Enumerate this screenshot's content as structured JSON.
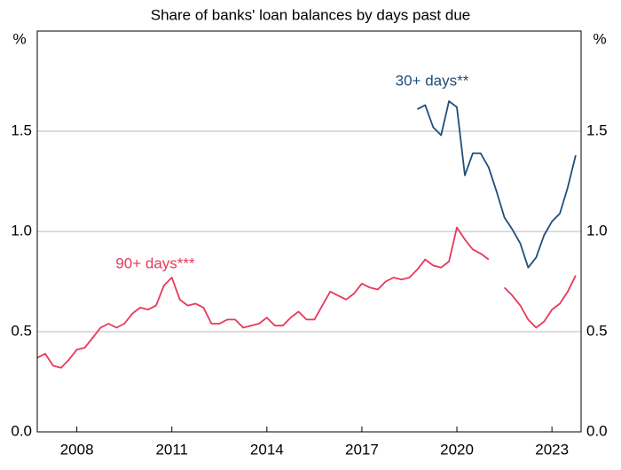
{
  "chart_data": {
    "type": "line",
    "title": "Share of banks' loan balances by days past due",
    "y_unit": "%",
    "x": [
      2006.75,
      2007,
      2007.25,
      2007.5,
      2007.75,
      2008,
      2008.25,
      2008.5,
      2008.75,
      2009,
      2009.25,
      2009.5,
      2009.75,
      2010,
      2010.25,
      2010.5,
      2010.75,
      2011,
      2011.25,
      2011.5,
      2011.75,
      2012,
      2012.25,
      2012.5,
      2012.75,
      2013,
      2013.25,
      2013.5,
      2013.75,
      2014,
      2014.25,
      2014.5,
      2014.75,
      2015,
      2015.25,
      2015.5,
      2015.75,
      2016,
      2016.25,
      2016.5,
      2016.75,
      2017,
      2017.25,
      2017.5,
      2017.75,
      2018,
      2018.25,
      2018.5,
      2018.75,
      2019,
      2019.25,
      2019.5,
      2019.75,
      2020,
      2020.25,
      2020.5,
      2020.75,
      2021,
      2021.25,
      2021.5,
      2021.75,
      2022,
      2022.25,
      2022.5,
      2022.75,
      2023,
      2023.25,
      2023.5,
      2023.75
    ],
    "series": [
      {
        "name": "90+ days***",
        "color": "#e8375a",
        "values": [
          0.37,
          0.39,
          0.33,
          0.32,
          0.36,
          0.41,
          0.42,
          0.47,
          0.52,
          0.54,
          0.52,
          0.54,
          0.59,
          0.62,
          0.61,
          0.63,
          0.73,
          0.77,
          0.66,
          0.63,
          0.64,
          0.62,
          0.54,
          0.54,
          0.56,
          0.56,
          0.52,
          0.53,
          0.54,
          0.57,
          0.53,
          0.53,
          0.57,
          0.6,
          0.56,
          0.56,
          0.63,
          0.7,
          0.68,
          0.66,
          0.69,
          0.74,
          0.72,
          0.71,
          0.75,
          0.77,
          0.76,
          0.77,
          0.81,
          0.86,
          0.83,
          0.82,
          0.85,
          1.02,
          0.96,
          0.91,
          0.89,
          0.86,
          null,
          0.72,
          0.68,
          0.63,
          0.56,
          0.52,
          0.55,
          0.61,
          0.64,
          0.7,
          0.78
        ]
      },
      {
        "name": "30+ days**",
        "color": "#1f4e7a",
        "values": [
          null,
          null,
          null,
          null,
          null,
          null,
          null,
          null,
          null,
          null,
          null,
          null,
          null,
          null,
          null,
          null,
          null,
          null,
          null,
          null,
          null,
          null,
          null,
          null,
          null,
          null,
          null,
          null,
          null,
          null,
          null,
          null,
          null,
          null,
          null,
          null,
          null,
          null,
          null,
          null,
          null,
          null,
          null,
          null,
          null,
          null,
          null,
          null,
          1.61,
          1.63,
          1.52,
          1.48,
          1.65,
          1.62,
          1.28,
          1.39,
          1.39,
          1.32,
          1.2,
          1.07,
          1.01,
          0.94,
          0.82,
          0.87,
          0.98,
          1.05,
          1.09,
          1.22,
          1.38
        ]
      }
    ],
    "xlim": [
      2006.75,
      2023.92
    ],
    "xticks": [
      2008,
      2011,
      2014,
      2017,
      2020,
      2023
    ],
    "ylim": [
      0,
      2
    ],
    "yticks": [
      {
        "value": 0,
        "label": "0.0"
      },
      0.5,
      {
        "value": 1,
        "label": "1.0"
      },
      1.5
    ],
    "grid": true
  }
}
